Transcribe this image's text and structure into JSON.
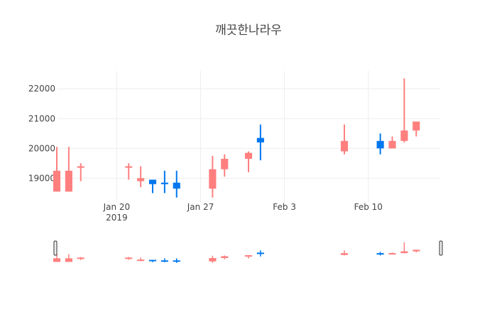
{
  "chart_data": {
    "type": "candlestick",
    "title": "깨끗한나라우",
    "xlabel": "",
    "ylabel": "",
    "y_ticks": [
      "19000",
      "20000",
      "21000",
      "22000"
    ],
    "ylim": [
      18200,
      22600
    ],
    "x_range": [
      "2019-01-15",
      "2019-02-16"
    ],
    "x_ticks": [
      {
        "date": "2019-01-20",
        "label": "Jan 20",
        "sublabel": "2019"
      },
      {
        "date": "2019-01-27",
        "label": "Jan 27",
        "sublabel": ""
      },
      {
        "date": "2019-02-03",
        "label": "Feb 3",
        "sublabel": ""
      },
      {
        "date": "2019-02-10",
        "label": "Feb 10",
        "sublabel": ""
      }
    ],
    "increasing_color": "#FF7F7F",
    "decreasing_color": "#0077EE",
    "grid": true,
    "rangeslider": true,
    "candles": [
      {
        "date": "2019-01-15",
        "open": 18550,
        "high": 20050,
        "low": 18550,
        "close": 19250
      },
      {
        "date": "2019-01-16",
        "open": 18550,
        "high": 20050,
        "low": 18550,
        "close": 19250
      },
      {
        "date": "2019-01-17",
        "open": 19350,
        "high": 19500,
        "low": 18900,
        "close": 19400
      },
      {
        "date": "2019-01-21",
        "open": 19350,
        "high": 19500,
        "low": 18950,
        "close": 19400
      },
      {
        "date": "2019-01-22",
        "open": 18900,
        "high": 19400,
        "low": 18700,
        "close": 19000
      },
      {
        "date": "2019-01-23",
        "open": 18950,
        "high": 18950,
        "low": 18500,
        "close": 18800
      },
      {
        "date": "2019-01-24",
        "open": 18850,
        "high": 19250,
        "low": 18500,
        "close": 18800
      },
      {
        "date": "2019-01-25",
        "open": 18850,
        "high": 19250,
        "low": 18350,
        "close": 18650
      },
      {
        "date": "2019-01-28",
        "open": 18650,
        "high": 19750,
        "low": 18350,
        "close": 19300
      },
      {
        "date": "2019-01-29",
        "open": 19300,
        "high": 19800,
        "low": 19050,
        "close": 19650
      },
      {
        "date": "2019-01-31",
        "open": 19650,
        "high": 19900,
        "low": 19200,
        "close": 19850
      },
      {
        "date": "2019-02-01",
        "open": 20350,
        "high": 20800,
        "low": 19600,
        "close": 20200
      },
      {
        "date": "2019-02-08",
        "open": 19900,
        "high": 20800,
        "low": 19800,
        "close": 20250
      },
      {
        "date": "2019-02-11",
        "open": 20250,
        "high": 20500,
        "low": 19800,
        "close": 20000
      },
      {
        "date": "2019-02-12",
        "open": 20000,
        "high": 20400,
        "low": 20000,
        "close": 20250
      },
      {
        "date": "2019-02-13",
        "open": 20250,
        "high": 22350,
        "low": 20200,
        "close": 20600
      },
      {
        "date": "2019-02-14",
        "open": 20600,
        "high": 20900,
        "low": 20400,
        "close": 20900
      }
    ]
  }
}
